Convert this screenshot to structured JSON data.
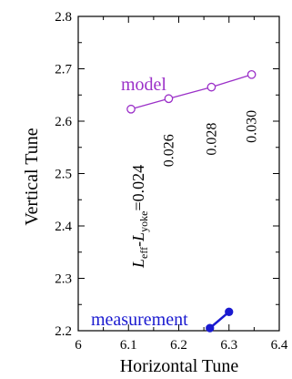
{
  "chart_data": {
    "type": "line",
    "xlabel": "Horizontal Tune",
    "ylabel": "Vertical Tune",
    "xlim": [
      6.0,
      6.4
    ],
    "ylim": [
      2.2,
      2.8
    ],
    "x_ticks": [
      "6",
      "6.1",
      "6.2",
      "6.3",
      "6.4"
    ],
    "y_ticks": [
      "2.2",
      "2.3",
      "2.4",
      "2.5",
      "2.6",
      "2.7",
      "2.8"
    ],
    "x_tick_values": [
      6.0,
      6.1,
      6.2,
      6.3,
      6.4
    ],
    "y_tick_values": [
      2.2,
      2.3,
      2.4,
      2.5,
      2.6,
      2.7,
      2.8
    ],
    "grid": false,
    "series": [
      {
        "name": "model",
        "color": "#9b30c8",
        "marker": "open-circle",
        "x": [
          6.105,
          6.18,
          6.265,
          6.345
        ],
        "y": [
          2.623,
          2.643,
          2.665,
          2.689
        ],
        "point_labels": [
          "0.024",
          "0.026",
          "0.028",
          "0.030"
        ]
      },
      {
        "name": "measurement",
        "color": "#1a1ad0",
        "marker": "filled-circle",
        "x": [
          6.262,
          6.3
        ],
        "y": [
          2.205,
          2.236
        ]
      }
    ],
    "annotation": {
      "prefix_L": "L",
      "eff": "eff",
      "dash": "-",
      "yoke": "yoke",
      "equals": "="
    }
  }
}
